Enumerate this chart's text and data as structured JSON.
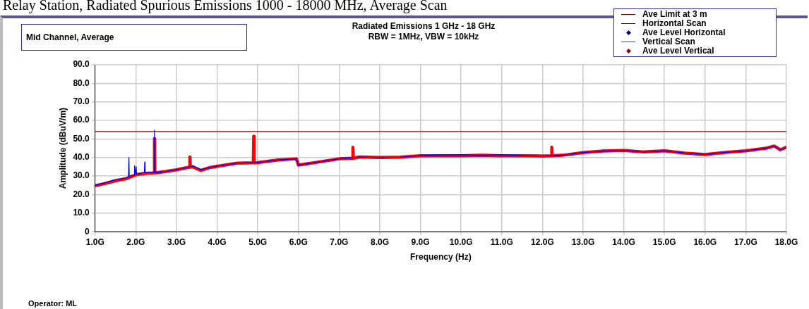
{
  "chart_data": {
    "type": "line",
    "title": "Radiated Emissions 1 GHz - 18 GHz",
    "subtitle": "RBW = 1MHz, VBW = 10kHz",
    "xlabel": "Frequency (Hz)",
    "ylabel": "Amplitude (dBuV/m)",
    "annotations": [
      "Relay Station, Radiated Spurious Emissions 1000 - 18000 MHz, Average Scan",
      "Mid Channel, Average",
      "Operator: ML"
    ],
    "xlim": [
      1,
      18
    ],
    "ylim": [
      0,
      90
    ],
    "xticks": [
      {
        "value": 1,
        "label": "1.0G"
      },
      {
        "value": 2,
        "label": "2.0G"
      },
      {
        "value": 3,
        "label": "3.0G"
      },
      {
        "value": 4,
        "label": "4.0G"
      },
      {
        "value": 5,
        "label": "5.0G"
      },
      {
        "value": 6,
        "label": "6.0G"
      },
      {
        "value": 7,
        "label": "7.0G"
      },
      {
        "value": 8,
        "label": "8.0G"
      },
      {
        "value": 9,
        "label": "9.0G"
      },
      {
        "value": 10,
        "label": "10.0G"
      },
      {
        "value": 11,
        "label": "11.0G"
      },
      {
        "value": 12,
        "label": "12.0G"
      },
      {
        "value": 13,
        "label": "13.0G"
      },
      {
        "value": 14,
        "label": "14.0G"
      },
      {
        "value": 15,
        "label": "15.0G"
      },
      {
        "value": 16,
        "label": "16.0G"
      },
      {
        "value": 17,
        "label": "17.0G"
      },
      {
        "value": 18,
        "label": "18.0G"
      }
    ],
    "yticks": [
      0,
      {
        "value": 10,
        "label": "10.0"
      },
      {
        "value": 20,
        "label": "20.0"
      },
      {
        "value": 30,
        "label": "30.0"
      },
      {
        "value": 40,
        "label": "40.0"
      },
      {
        "value": 50,
        "label": "50.0"
      },
      {
        "value": 60,
        "label": "60.0"
      },
      {
        "value": 70,
        "label": "70.0"
      },
      {
        "value": 80,
        "label": "80.0"
      },
      {
        "value": 90,
        "label": "90.0"
      }
    ],
    "grid": true,
    "legend": "top right",
    "marker": "none",
    "line_style": "solid",
    "series": [
      {
        "name": "Ave Limit at 3 m",
        "color": "#800000",
        "x": [
          1,
          18
        ],
        "values": [
          54,
          54
        ]
      },
      {
        "name": "Horizontal Scan",
        "color": "#0000ff",
        "x": [
          1,
          1.25,
          1.5,
          1.75,
          1.82,
          1.83,
          1.84,
          1.96,
          1.97,
          2.0,
          2.01,
          2.02,
          2.21,
          2.22,
          2.23,
          2.45,
          2.46,
          2.47,
          2.75,
          3.0,
          3.25,
          3.4,
          3.6,
          3.8,
          4.0,
          4.5,
          5.0,
          5.5,
          5.95,
          6.0,
          6.5,
          7.0,
          7.5,
          8.0,
          8.5,
          9.0,
          9.5,
          10.0,
          10.5,
          11.0,
          11.5,
          12.0,
          12.5,
          13.0,
          13.5,
          14.0,
          14.5,
          15.0,
          15.5,
          16.0,
          16.5,
          17.0,
          17.5,
          17.7,
          17.85,
          18.0
        ],
        "values": [
          25,
          26.5,
          28,
          29,
          29.5,
          40,
          30,
          30.5,
          35.5,
          31,
          35,
          31,
          32,
          37.6,
          32,
          32,
          54.8,
          32,
          32.5,
          33.5,
          34.5,
          35.5,
          33.5,
          34.5,
          35.3,
          37,
          37.3,
          38.7,
          39.3,
          35.9,
          37.6,
          39.3,
          40.3,
          40,
          40.2,
          41,
          41.4,
          41.5,
          41.2,
          41.5,
          41,
          40.8,
          41.2,
          42.7,
          43.5,
          43.8,
          43,
          43.6,
          42.4,
          41.6,
          42.8,
          43.6,
          45,
          46.2,
          44.2,
          45.6
        ]
      },
      {
        "name": "Ave Level Horizontal",
        "type": "scatter",
        "color": "#000080"
      },
      {
        "name": "Vertical Scan",
        "color": "#ff0000",
        "x": [
          1,
          1.25,
          1.5,
          1.75,
          2.0,
          2.25,
          2.45,
          2.46,
          2.47,
          2.75,
          3.0,
          3.25,
          3.32,
          3.33,
          3.34,
          3.4,
          3.6,
          3.8,
          4.0,
          4.5,
          4.89,
          4.9,
          4.91,
          5.0,
          5.5,
          5.95,
          6.0,
          6.5,
          7.0,
          7.33,
          7.34,
          7.35,
          7.5,
          8.0,
          8.5,
          9.0,
          9.5,
          10.0,
          10.5,
          11.0,
          11.5,
          12.0,
          12.22,
          12.23,
          12.24,
          12.5,
          13.0,
          13.5,
          14.0,
          14.5,
          15.0,
          15.5,
          16.0,
          16.5,
          17.0,
          17.5,
          17.7,
          17.85,
          18.0
        ],
        "values": [
          24.8,
          26,
          27.5,
          28.5,
          30.7,
          31.5,
          31.7,
          50.3,
          31.7,
          32.5,
          33.4,
          34.5,
          34.8,
          40.3,
          34.8,
          35,
          33,
          34.5,
          35.3,
          37,
          37.2,
          51.4,
          37.2,
          37.3,
          38.7,
          39.3,
          35.9,
          37.6,
          39.3,
          39.6,
          45.5,
          39.6,
          40.3,
          40,
          40.2,
          41,
          41,
          41,
          41.2,
          41,
          41,
          40.8,
          41,
          45.6,
          41,
          41.2,
          42.7,
          43.5,
          43.8,
          43,
          43.6,
          42.4,
          41.6,
          42.8,
          43.6,
          45,
          46.2,
          44.2,
          45.6
        ]
      },
      {
        "name": "Ave Level Vertical",
        "type": "scatter",
        "color": "#a00000"
      }
    ]
  }
}
